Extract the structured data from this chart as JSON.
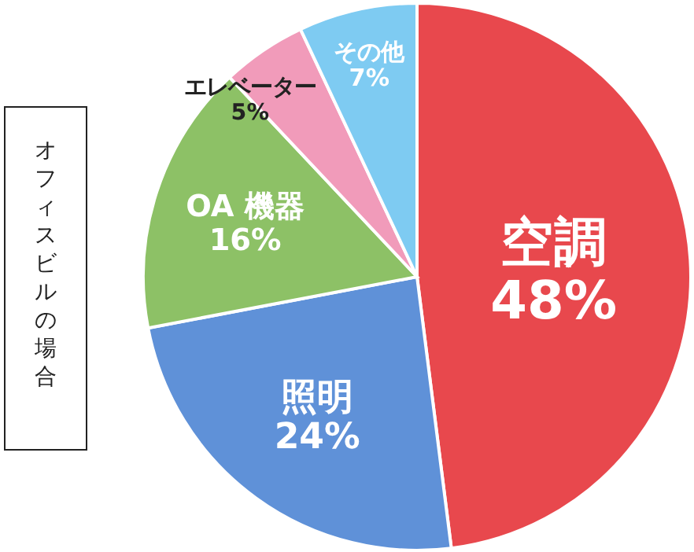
{
  "chart_data": {
    "type": "pie",
    "title": "オフィスビルの場合",
    "categories": [
      "空調",
      "照明",
      "OA 機器",
      "エレベーター",
      "その他"
    ],
    "values": [
      48,
      24,
      16,
      5,
      7
    ],
    "value_labels": [
      "48%",
      "24%",
      "16%",
      "5%",
      "7%"
    ],
    "colors": [
      "#e8484d",
      "#5f91d8",
      "#8dc166",
      "#f19bba",
      "#7ecbf2"
    ]
  }
}
